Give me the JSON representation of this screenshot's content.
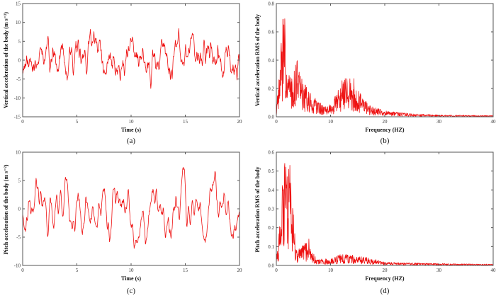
{
  "figure": {
    "line_color": "#ee1111",
    "frame_color": "#555555"
  },
  "chart_data": [
    {
      "id": "a",
      "type": "line",
      "panel_label": "(a)",
      "xlabel": "Time (s)",
      "ylabel": "Vertical acceleration of the body (m s⁻²)",
      "xlim": [
        0,
        20
      ],
      "ylim": [
        -15,
        15
      ],
      "xticks": [
        0,
        5,
        10,
        15,
        20
      ],
      "yticks": [
        -15,
        -10,
        -5,
        0,
        5,
        10,
        15
      ],
      "grid": false,
      "signal": {
        "kind": "random-time",
        "seed": 11,
        "amplitude": 2.6,
        "smooth": 0.45,
        "max": 8.8,
        "min": -7.5,
        "n": 600
      },
      "description": "Random vibration signal, roughly within -7.5 to 8.8 m/s², peak ~8.8 near t=12 s"
    },
    {
      "id": "b",
      "type": "line",
      "panel_label": "(b)",
      "xlabel": "Frequency (HZ)",
      "ylabel": "Vertical acceleration RMS of the body",
      "xlim": [
        0,
        40
      ],
      "ylim": [
        0.0,
        0.8
      ],
      "xticks": [
        0,
        10,
        20,
        30,
        40
      ],
      "yticks": [
        0.0,
        0.2,
        0.4,
        0.6,
        0.8
      ],
      "grid": false,
      "envelope": [
        {
          "f": 0,
          "v": 0.02
        },
        {
          "f": 0.5,
          "v": 0.2
        },
        {
          "f": 1.0,
          "v": 0.35
        },
        {
          "f": 1.4,
          "v": 0.45
        },
        {
          "f": 2.0,
          "v": 0.28
        },
        {
          "f": 2.6,
          "v": 0.15
        },
        {
          "f": 3.2,
          "v": 0.18
        },
        {
          "f": 3.8,
          "v": 0.25
        },
        {
          "f": 4.5,
          "v": 0.17
        },
        {
          "f": 6,
          "v": 0.1
        },
        {
          "f": 8,
          "v": 0.06
        },
        {
          "f": 9.5,
          "v": 0.04
        },
        {
          "f": 11,
          "v": 0.09
        },
        {
          "f": 12.5,
          "v": 0.17
        },
        {
          "f": 14,
          "v": 0.16
        },
        {
          "f": 15.5,
          "v": 0.1
        },
        {
          "f": 17,
          "v": 0.05
        },
        {
          "f": 20,
          "v": 0.025
        },
        {
          "f": 25,
          "v": 0.012
        },
        {
          "f": 30,
          "v": 0.008
        },
        {
          "f": 40,
          "v": 0.005
        }
      ],
      "peaks": [
        {
          "f": 1.4,
          "v": 0.65
        },
        {
          "f": 0.9,
          "v": 0.52
        },
        {
          "f": 3.8,
          "v": 0.39
        },
        {
          "f": 14.3,
          "v": 0.27
        },
        {
          "f": 12.7,
          "v": 0.27
        }
      ],
      "seed": 23,
      "n": 800
    },
    {
      "id": "c",
      "type": "line",
      "panel_label": "(c)",
      "xlabel": "Time (s)",
      "ylabel": "Pitch acceleration of the body  (m s⁻²)",
      "xlim": [
        0,
        20
      ],
      "ylim": [
        -10,
        10
      ],
      "xticks": [
        0,
        5,
        10,
        15,
        20
      ],
      "yticks": [
        -10,
        -5,
        0,
        5,
        10
      ],
      "grid": false,
      "signal": {
        "kind": "random-time",
        "seed": 37,
        "amplitude": 2.4,
        "smooth": 0.75,
        "max": 7.6,
        "min": -7.0,
        "n": 600
      },
      "description": "Oscillating pitch acceleration within about -7 to 7.6 m/s², peak ~7.6 near t=1.8 s"
    },
    {
      "id": "d",
      "type": "line",
      "panel_label": "(d)",
      "xlabel": "Frequency (HZ)",
      "ylabel": "Pitch acceleration RMS of the body",
      "xlim": [
        0,
        40
      ],
      "ylim": [
        0.0,
        0.6
      ],
      "xticks": [
        0,
        10,
        20,
        30,
        40
      ],
      "yticks": [
        0.0,
        0.1,
        0.2,
        0.3,
        0.4,
        0.5,
        0.6
      ],
      "grid": false,
      "envelope": [
        {
          "f": 0,
          "v": 0.02
        },
        {
          "f": 0.6,
          "v": 0.12
        },
        {
          "f": 1.2,
          "v": 0.3
        },
        {
          "f": 1.8,
          "v": 0.35
        },
        {
          "f": 2.4,
          "v": 0.33
        },
        {
          "f": 3.0,
          "v": 0.2
        },
        {
          "f": 3.6,
          "v": 0.05
        },
        {
          "f": 4.5,
          "v": 0.06
        },
        {
          "f": 5.5,
          "v": 0.07
        },
        {
          "f": 6.5,
          "v": 0.05
        },
        {
          "f": 7.5,
          "v": 0.02
        },
        {
          "f": 10,
          "v": 0.02
        },
        {
          "f": 12,
          "v": 0.035
        },
        {
          "f": 15,
          "v": 0.03
        },
        {
          "f": 18,
          "v": 0.02
        },
        {
          "f": 20,
          "v": 0.01
        },
        {
          "f": 30,
          "v": 0.006
        },
        {
          "f": 40,
          "v": 0.004
        }
      ],
      "peaks": [
        {
          "f": 1.5,
          "v": 0.52
        },
        {
          "f": 2.3,
          "v": 0.51
        },
        {
          "f": 2.0,
          "v": 0.47
        },
        {
          "f": 6.0,
          "v": 0.14
        },
        {
          "f": 5.0,
          "v": 0.1
        }
      ],
      "seed": 51,
      "n": 800
    }
  ]
}
